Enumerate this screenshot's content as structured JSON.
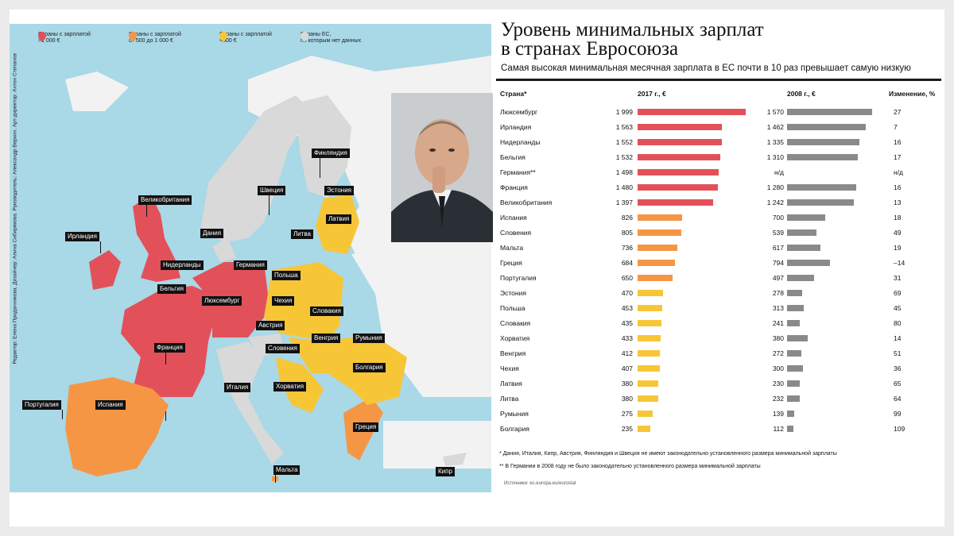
{
  "title_line1": "Уровень минимальных зарплат",
  "title_line2": "в странах Евросоюза",
  "subtitle": "Самая высокая минимальная месячная зарплата в ЕС почти в 10 раз превышает самую низкую",
  "legend": [
    {
      "line1": "Страны с зарплатой",
      "line2": ">1 000 €",
      "color": "#e2515a"
    },
    {
      "line1": "Страны с зарплатой",
      "line2": "от 500 до 1 000 €",
      "color": "#f59645"
    },
    {
      "line1": "Страны с зарплатой",
      "line2": "<500 €",
      "color": "#f7c637"
    },
    {
      "line1": "Страны ЕС,",
      "line2": "по которым нет данных",
      "color": "#d9d9d9"
    }
  ],
  "credits": "Редактор: Елена Приданникова. Дизайнер: Алина Сибирякова. Руководитель: Александр Верхин. Арт-директор: Антон Степанов",
  "map_labels": [
    "Финляндия",
    "Швеция",
    "Эстония",
    "Латвия",
    "Литва",
    "Дания",
    "Великобритания",
    "Ирландия",
    "Нидерланды",
    "Германия",
    "Бельгия",
    "Люксембург",
    "Польша",
    "Чехия",
    "Словакия",
    "Австрия",
    "Франция",
    "Венгрия",
    "Румыния",
    "Словения",
    "Болгария",
    "Хорватия",
    "Италия",
    "Португалия",
    "Испания",
    "Греция",
    "Мальта",
    "Кипр"
  ],
  "table_headers": {
    "country": "Страна*",
    "y2017": "2017 г., €",
    "y2008": "2008 г., €",
    "change": "Изменение, %"
  },
  "chart_data": {
    "type": "bar",
    "title": "Уровень минимальных зарплат в странах Евросоюза",
    "categories": [
      "Люксембург",
      "Ирландия",
      "Нидерланды",
      "Бельгия",
      "Германия**",
      "Франция",
      "Великобритания",
      "Испания",
      "Словения",
      "Мальта",
      "Греция",
      "Португалия",
      "Эстония",
      "Польша",
      "Словакия",
      "Хорватия",
      "Венгрия",
      "Чехия",
      "Латвия",
      "Литва",
      "Румыния",
      "Болгария"
    ],
    "series": [
      {
        "name": "2017 г., €",
        "values": [
          1999,
          1563,
          1552,
          1532,
          1498,
          1480,
          1397,
          826,
          805,
          736,
          684,
          650,
          470,
          453,
          435,
          433,
          412,
          407,
          380,
          380,
          275,
          235
        ],
        "labels": [
          "1 999",
          "1 563",
          "1 552",
          "1 532",
          "1 498",
          "1 480",
          "1 397",
          "826",
          "805",
          "736",
          "684",
          "650",
          "470",
          "453",
          "435",
          "433",
          "412",
          "407",
          "380",
          "380",
          "275",
          "235"
        ]
      },
      {
        "name": "2008 г., €",
        "values": [
          1570,
          1462,
          1335,
          1310,
          null,
          1280,
          1242,
          700,
          539,
          617,
          794,
          497,
          278,
          313,
          241,
          380,
          272,
          300,
          230,
          232,
          139,
          112
        ],
        "labels": [
          "1 570",
          "1 462",
          "1 335",
          "1 310",
          "н/д",
          "1 280",
          "1 242",
          "700",
          "539",
          "617",
          "794",
          "497",
          "278",
          "313",
          "241",
          "380",
          "272",
          "300",
          "230",
          "232",
          "139",
          "112"
        ]
      }
    ],
    "change": [
      "27",
      "7",
      "16",
      "17",
      "н/д",
      "16",
      "13",
      "18",
      "49",
      "19",
      "–14",
      "31",
      "69",
      "45",
      "80",
      "14",
      "51",
      "36",
      "65",
      "64",
      "99",
      "109"
    ],
    "colors": {
      "high": "#e2515a",
      "mid": "#f59645",
      "low": "#f7c637",
      "y2008": "#8a8a8a"
    }
  },
  "footnote1": "* Дания, Италия, Кипр, Австрия, Финляндия и Швеция не имеют законодательно установленного размера минимальной зарплаты",
  "footnote2": "** В Германии в 2008 году не было законодательно установленного размера минимальной зарплаты",
  "source": "Источники: ec.europa.eu/eurostat"
}
